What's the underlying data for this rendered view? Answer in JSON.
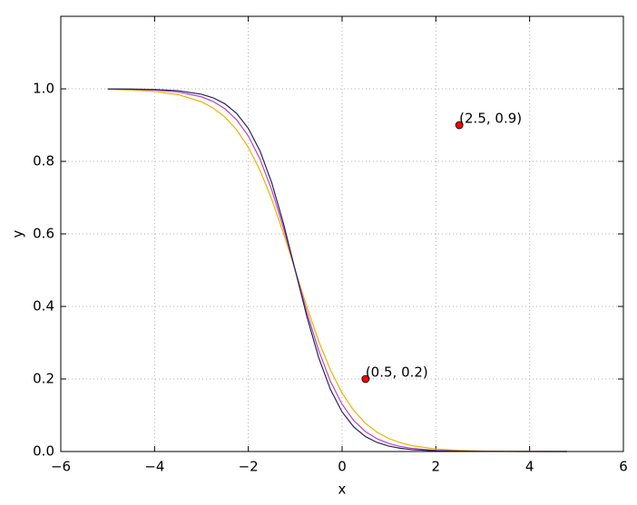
{
  "chart_data": {
    "type": "line",
    "xlabel": "x",
    "ylabel": "y",
    "x": [
      -5,
      -4.5,
      -4,
      -3.5,
      -3,
      -2.75,
      -2.5,
      -2.25,
      -2,
      -1.75,
      -1.5,
      -1.25,
      -1,
      -0.75,
      -0.5,
      -0.25,
      0,
      0.25,
      0.5,
      0.75,
      1,
      1.25,
      1.5,
      2,
      2.5,
      3,
      3.5,
      4,
      4.8
    ],
    "series": [
      {
        "color": "#e6b400",
        "values": [
          0.9986,
          0.9969,
          0.993,
          0.9841,
          0.9644,
          0.9472,
          0.9224,
          0.8872,
          0.8389,
          0.7751,
          0.6953,
          0.6017,
          0.5,
          0.3983,
          0.3047,
          0.2249,
          0.1611,
          0.1128,
          0.0776,
          0.0528,
          0.0356,
          0.0238,
          0.0159,
          0.007,
          0.0031,
          0.0014,
          0.0006,
          0.0003,
          0.0001
        ]
      },
      {
        "color": "#c040c0",
        "values": [
          0.9995,
          0.9987,
          0.9967,
          0.9914,
          0.9781,
          0.9653,
          0.9453,
          0.9149,
          0.8699,
          0.8061,
          0.7211,
          0.6166,
          0.5,
          0.3834,
          0.2789,
          0.1939,
          0.1301,
          0.0851,
          0.0547,
          0.0347,
          0.0219,
          0.0137,
          0.0086,
          0.0033,
          0.0013,
          0.0005,
          0.0002,
          0.0001,
          0
        ]
      },
      {
        "color": "#23235c",
        "values": [
          0.9998,
          0.9994,
          0.9982,
          0.9948,
          0.9852,
          0.9753,
          0.9589,
          0.9325,
          0.8909,
          0.8285,
          0.7408,
          0.6283,
          0.5,
          0.3717,
          0.2592,
          0.1715,
          0.1091,
          0.0675,
          0.0411,
          0.0247,
          0.0148,
          0.0088,
          0.0052,
          0.0018,
          0.0006,
          0.0002,
          0.0001,
          0,
          0
        ]
      }
    ],
    "points": {
      "x": [
        0.5,
        2.5
      ],
      "y": [
        0.2,
        0.9
      ],
      "labels": [
        "(0.5, 0.2)",
        "(2.5, 0.9)"
      ],
      "color": "#ff0000"
    },
    "xlim": [
      -6,
      6
    ],
    "xticks": [
      {
        "value": -6,
        "label": "−6"
      },
      {
        "value": -4,
        "label": "−4"
      },
      {
        "value": -2,
        "label": "−2"
      },
      0,
      2,
      4,
      6
    ],
    "ylim": [
      0,
      1.2
    ],
    "yticks": [
      {
        "value": 0,
        "label": "0.0"
      },
      0.2,
      0.4,
      0.6,
      0.8,
      {
        "value": 1,
        "label": "1.0"
      }
    ],
    "grid": true
  }
}
